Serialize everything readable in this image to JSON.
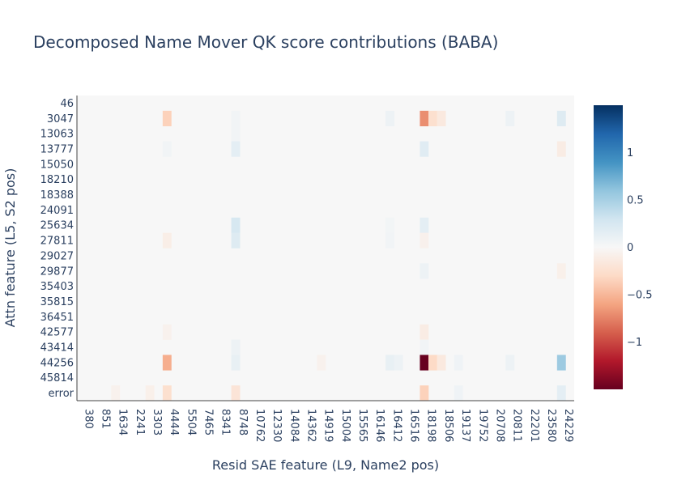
{
  "chart_data": {
    "type": "heatmap",
    "title": "Decomposed Name Mover QK score contributions (BABA)",
    "xlabel": "Resid SAE feature (L9, Name2 pos)",
    "ylabel": "Attn feature (L5, S2 pos)",
    "x_tick_labels": [
      "380",
      "851",
      "1634",
      "2241",
      "3303",
      "4444",
      "5504",
      "7465",
      "8341",
      "8748",
      "10762",
      "12330",
      "14084",
      "14362",
      "14919",
      "15004",
      "15565",
      "16146",
      "16412",
      "16516",
      "18198",
      "18506",
      "19137",
      "19752",
      "20708",
      "20811",
      "22201",
      "23580",
      "24229"
    ],
    "y_tick_labels": [
      "46",
      "3047",
      "13063",
      "13777",
      "15050",
      "18210",
      "18388",
      "24091",
      "25634",
      "27811",
      "29027",
      "29877",
      "35403",
      "35815",
      "36451",
      "42577",
      "43414",
      "44256",
      "45814",
      "error"
    ],
    "colorscale": {
      "name": "RdBu",
      "zmin": -1.5,
      "zmax": 1.5,
      "tick_values": [
        1,
        0.5,
        0,
        -0.5,
        -1
      ],
      "tick_labels": [
        "1",
        "0.5",
        "0",
        "−0.5",
        "−1"
      ]
    },
    "background_value": 0,
    "notable_cells": [
      {
        "x": "4444",
        "y": "3047",
        "value": -0.35
      },
      {
        "x": "8748",
        "y": "3047",
        "value": 0.05
      },
      {
        "x": "18198",
        "y": "3047",
        "value": -0.7
      },
      {
        "x": "18198",
        "y": "3047",
        "value": -0.25,
        "offset": 1
      },
      {
        "x": "18506",
        "y": "3047",
        "value": -0.15
      },
      {
        "x": "16412",
        "y": "3047",
        "value": 0.08
      },
      {
        "x": "20811",
        "y": "3047",
        "value": 0.08
      },
      {
        "x": "24229",
        "y": "3047",
        "value": 0.2
      },
      {
        "x": "8748",
        "y": "13063",
        "value": 0.05
      },
      {
        "x": "8748",
        "y": "13777",
        "value": 0.15
      },
      {
        "x": "18198",
        "y": "13777",
        "value": 0.18
      },
      {
        "x": "4444",
        "y": "13777",
        "value": 0.05
      },
      {
        "x": "24229",
        "y": "13777",
        "value": -0.12
      },
      {
        "x": "8748",
        "y": "25634",
        "value": 0.25
      },
      {
        "x": "18198",
        "y": "25634",
        "value": 0.15
      },
      {
        "x": "16412",
        "y": "25634",
        "value": 0.04
      },
      {
        "x": "8748",
        "y": "27811",
        "value": 0.2
      },
      {
        "x": "4444",
        "y": "27811",
        "value": -0.1
      },
      {
        "x": "16412",
        "y": "27811",
        "value": 0.05
      },
      {
        "x": "18198",
        "y": "27811",
        "value": -0.07
      },
      {
        "x": "18198",
        "y": "29877",
        "value": 0.08
      },
      {
        "x": "24229",
        "y": "29877",
        "value": -0.08
      },
      {
        "x": "18198",
        "y": "42577",
        "value": -0.12
      },
      {
        "x": "4444",
        "y": "42577",
        "value": -0.06
      },
      {
        "x": "8748",
        "y": "43414",
        "value": 0.08
      },
      {
        "x": "18198",
        "y": "43414",
        "value": 0.05
      },
      {
        "x": "4444",
        "y": "44256",
        "value": -0.55
      },
      {
        "x": "8748",
        "y": "44256",
        "value": 0.12
      },
      {
        "x": "16412",
        "y": "44256",
        "value": 0.12
      },
      {
        "x": "16412",
        "y": "44256",
        "value": 0.08,
        "offset": 1
      },
      {
        "x": "18198",
        "y": "44256",
        "value": -1.5
      },
      {
        "x": "18198",
        "y": "44256",
        "value": -0.3,
        "offset": 1
      },
      {
        "x": "18506",
        "y": "44256",
        "value": -0.15
      },
      {
        "x": "14919",
        "y": "44256",
        "value": -0.06
      },
      {
        "x": "19137",
        "y": "44256",
        "value": 0.06
      },
      {
        "x": "20811",
        "y": "44256",
        "value": 0.08
      },
      {
        "x": "24229",
        "y": "44256",
        "value": 0.55
      },
      {
        "x": "4444",
        "y": "error",
        "value": -0.25
      },
      {
        "x": "8748",
        "y": "error",
        "value": -0.2
      },
      {
        "x": "18198",
        "y": "error",
        "value": -0.35
      },
      {
        "x": "3303",
        "y": "error",
        "value": -0.08
      },
      {
        "x": "1634",
        "y": "error",
        "value": -0.06
      },
      {
        "x": "19137",
        "y": "error",
        "value": 0.06
      },
      {
        "x": "24229",
        "y": "error",
        "value": 0.15
      }
    ]
  }
}
